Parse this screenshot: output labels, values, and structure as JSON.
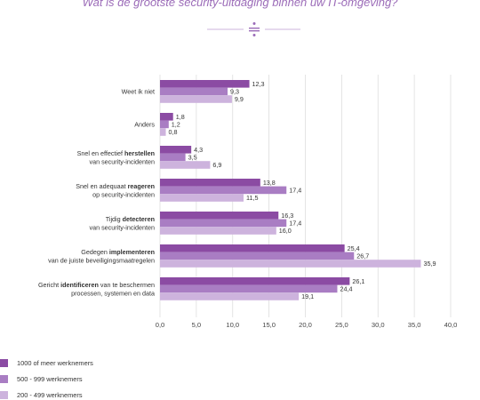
{
  "title": "Wat is de grootste security-uitdaging binnen uw IT-omgeving?",
  "colors": {
    "series": [
      "#8b4ba3",
      "#a97dc3",
      "#cdb3dd"
    ],
    "accent": "#9b6bb8",
    "grid": "#dddddd"
  },
  "chart_data": {
    "type": "bar",
    "orientation": "horizontal",
    "categories": [
      {
        "parts": [
          {
            "text": "Weet ik niet",
            "b": false
          }
        ]
      },
      {
        "parts": [
          {
            "text": "Anders",
            "b": false
          }
        ]
      },
      {
        "lines": [
          [
            {
              "text": "Snel en effectief ",
              "b": false
            },
            {
              "text": "herstellen",
              "b": true
            }
          ],
          [
            {
              "text": "van security-incidenten",
              "b": false
            }
          ]
        ]
      },
      {
        "lines": [
          [
            {
              "text": "Snel en adequaat ",
              "b": false
            },
            {
              "text": "reageren",
              "b": true
            }
          ],
          [
            {
              "text": "op security-incidenten",
              "b": false
            }
          ]
        ]
      },
      {
        "lines": [
          [
            {
              "text": "Tijdig ",
              "b": false
            },
            {
              "text": "detecteren",
              "b": true
            }
          ],
          [
            {
              "text": "van security-incidenten",
              "b": false
            }
          ]
        ]
      },
      {
        "lines": [
          [
            {
              "text": "Gedegen ",
              "b": false
            },
            {
              "text": "implementeren",
              "b": true
            }
          ],
          [
            {
              "text": "van de juiste beveiligingsmaatregelen",
              "b": false
            }
          ]
        ]
      },
      {
        "lines": [
          [
            {
              "text": "Gericht ",
              "b": false
            },
            {
              "text": "identificeren",
              "b": true
            },
            {
              "text": " van te beschermen",
              "b": false
            }
          ],
          [
            {
              "text": "processen, systemen en data",
              "b": false
            }
          ]
        ]
      }
    ],
    "series": [
      {
        "name": "1000 of meer werknemers",
        "values": [
          12.3,
          1.8,
          4.3,
          13.8,
          16.3,
          25.4,
          26.1
        ],
        "labels": [
          "12,3",
          "1,8",
          "4,3",
          "13,8",
          "16,3",
          "25,4",
          "26,1"
        ]
      },
      {
        "name": "500 - 999 werknemers",
        "values": [
          9.3,
          1.2,
          3.5,
          17.4,
          17.4,
          26.7,
          24.4
        ],
        "labels": [
          "9,3",
          "1,2",
          "3,5",
          "17,4",
          "17,4",
          "26,7",
          "24,4"
        ]
      },
      {
        "name": "200 - 499 werknemers",
        "values": [
          9.9,
          0.8,
          6.9,
          11.5,
          16.0,
          35.9,
          19.1
        ],
        "labels": [
          "9,9",
          "0,8",
          "6,9",
          "11,5",
          "16,0",
          "35,9",
          "19,1"
        ]
      }
    ],
    "xlim": [
      0,
      40
    ],
    "ticks": [
      0,
      5,
      10,
      15,
      20,
      25,
      30,
      35,
      40
    ],
    "tick_labels": [
      "0,0",
      "5,0",
      "10,0",
      "15,0",
      "20,0",
      "25,0",
      "30,0",
      "35,0",
      "40,0"
    ],
    "grid": true,
    "legend_position": "bottom-left"
  }
}
